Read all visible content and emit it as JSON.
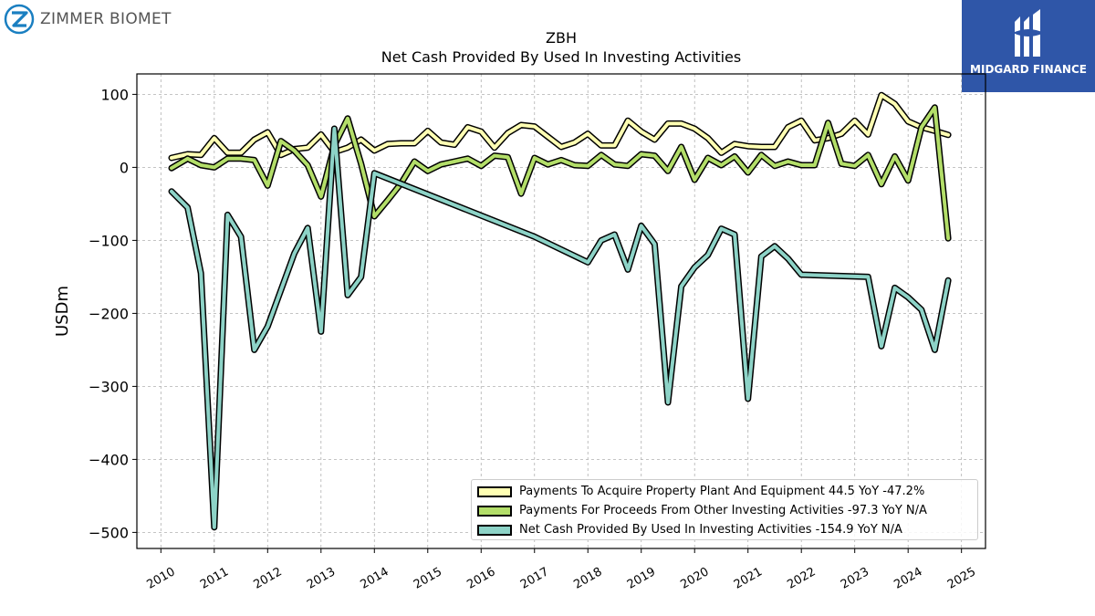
{
  "header": {
    "company_logo_text": "ZIMMER BIOMET",
    "brand_text": "MIDGARD FINANCE"
  },
  "colors": {
    "capex": "#ffffb3",
    "other": "#b3de69",
    "net": "#8dd3c7",
    "outline": "#000000",
    "grid": "#b0b0b0",
    "brand_bg": "#2f56a8"
  },
  "chart_data": {
    "type": "line",
    "title": "ZBH",
    "subtitle": "Net Cash Provided By Used In Investing Activities",
    "xlabel": "",
    "ylabel": "USDm",
    "xlim": [
      2009.55,
      2025.45
    ],
    "ylim": [
      -522,
      128
    ],
    "x_ticks": [
      "2010",
      "2011",
      "2012",
      "2013",
      "2014",
      "2015",
      "2016",
      "2017",
      "2018",
      "2019",
      "2020",
      "2021",
      "2022",
      "2023",
      "2024",
      "2025"
    ],
    "y_ticks": [
      100,
      0,
      -100,
      -200,
      -300,
      -400,
      -500
    ],
    "y_tick_labels": [
      "100",
      "0",
      "−100",
      "−200",
      "−300",
      "−400",
      "−500"
    ],
    "grid": true,
    "legend_position": "bottom-right",
    "series": [
      {
        "name": "Payments To Acquire Property Plant And Equipment",
        "legend_label": "Payments To Acquire Property Plant And Equipment  44.5 YoY -47.2%",
        "color_key": "capex",
        "points": [
          [
            2010.2,
            13
          ],
          [
            2010.5,
            18
          ],
          [
            2010.75,
            17
          ],
          [
            2011.0,
            40
          ],
          [
            2011.25,
            20
          ],
          [
            2011.5,
            20
          ],
          [
            2011.75,
            38
          ],
          [
            2012.0,
            48
          ],
          [
            2012.25,
            17
          ],
          [
            2012.5,
            25
          ],
          [
            2012.75,
            27
          ],
          [
            2013.0,
            45
          ],
          [
            2013.25,
            21
          ],
          [
            2013.5,
            27
          ],
          [
            2013.75,
            38
          ],
          [
            2014.0,
            23
          ],
          [
            2014.25,
            32
          ],
          [
            2014.5,
            33
          ],
          [
            2014.75,
            33
          ],
          [
            2015.0,
            50
          ],
          [
            2015.25,
            34
          ],
          [
            2015.5,
            31
          ],
          [
            2015.75,
            55
          ],
          [
            2016.0,
            49
          ],
          [
            2016.25,
            27
          ],
          [
            2016.5,
            47
          ],
          [
            2016.75,
            58
          ],
          [
            2017.0,
            56
          ],
          [
            2017.25,
            42
          ],
          [
            2017.5,
            28
          ],
          [
            2017.75,
            34
          ],
          [
            2018.0,
            46
          ],
          [
            2018.25,
            30
          ],
          [
            2018.5,
            30
          ],
          [
            2018.75,
            64
          ],
          [
            2019.0,
            49
          ],
          [
            2019.25,
            38
          ],
          [
            2019.5,
            60
          ],
          [
            2019.75,
            60
          ],
          [
            2020.0,
            53
          ],
          [
            2020.25,
            40
          ],
          [
            2020.5,
            20
          ],
          [
            2020.75,
            32
          ],
          [
            2021.0,
            29
          ],
          [
            2021.25,
            28
          ],
          [
            2021.5,
            28
          ],
          [
            2021.75,
            55
          ],
          [
            2022.0,
            64
          ],
          [
            2022.25,
            37
          ],
          [
            2022.5,
            40
          ],
          [
            2022.75,
            46
          ],
          [
            2023.0,
            64
          ],
          [
            2023.25,
            45
          ],
          [
            2023.5,
            99
          ],
          [
            2023.75,
            87
          ],
          [
            2024.0,
            63
          ],
          [
            2024.25,
            55
          ],
          [
            2024.5,
            50
          ],
          [
            2024.75,
            44.5
          ]
        ]
      },
      {
        "name": "Payments For Proceeds From Other Investing Activities",
        "legend_label": "Payments For Proceeds From Other Investing Activities  -97.3 YoY N/A",
        "color_key": "other",
        "points": [
          [
            2010.2,
            -1
          ],
          [
            2010.5,
            12
          ],
          [
            2010.75,
            3
          ],
          [
            2011.0,
            0
          ],
          [
            2011.25,
            12
          ],
          [
            2011.5,
            12
          ],
          [
            2011.75,
            10
          ],
          [
            2012.0,
            -25
          ],
          [
            2012.25,
            36
          ],
          [
            2012.5,
            23
          ],
          [
            2012.75,
            3
          ],
          [
            2013.0,
            -40
          ],
          [
            2013.25,
            30
          ],
          [
            2013.5,
            67
          ],
          [
            2013.75,
            5
          ],
          [
            2014.0,
            -67
          ],
          [
            2014.25,
            -45
          ],
          [
            2014.5,
            -22
          ],
          [
            2014.75,
            8
          ],
          [
            2015.0,
            -5
          ],
          [
            2015.25,
            4
          ],
          [
            2015.5,
            8
          ],
          [
            2015.75,
            12
          ],
          [
            2016.0,
            2
          ],
          [
            2016.25,
            16
          ],
          [
            2016.5,
            14
          ],
          [
            2016.75,
            -36
          ],
          [
            2017.0,
            13
          ],
          [
            2017.25,
            4
          ],
          [
            2017.5,
            10
          ],
          [
            2017.75,
            3
          ],
          [
            2018.0,
            2
          ],
          [
            2018.25,
            17
          ],
          [
            2018.5,
            4
          ],
          [
            2018.75,
            2
          ],
          [
            2019.0,
            18
          ],
          [
            2019.25,
            16
          ],
          [
            2019.5,
            -5
          ],
          [
            2019.75,
            28
          ],
          [
            2020.0,
            -17
          ],
          [
            2020.25,
            13
          ],
          [
            2020.5,
            3
          ],
          [
            2020.75,
            15
          ],
          [
            2021.0,
            -7
          ],
          [
            2021.25,
            17
          ],
          [
            2021.5,
            2
          ],
          [
            2021.75,
            8
          ],
          [
            2022.0,
            3
          ],
          [
            2022.25,
            3
          ],
          [
            2022.5,
            61
          ],
          [
            2022.75,
            5
          ],
          [
            2023.0,
            2
          ],
          [
            2023.25,
            17
          ],
          [
            2023.5,
            -23
          ],
          [
            2023.75,
            15
          ],
          [
            2024.0,
            -18
          ],
          [
            2024.25,
            55
          ],
          [
            2024.5,
            82
          ],
          [
            2024.75,
            -97.3
          ]
        ]
      },
      {
        "name": "Net Cash Provided By Used In Investing Activities",
        "legend_label": "Net Cash Provided By Used In Investing Activities  -154.9 YoY N/A",
        "color_key": "net",
        "points": [
          [
            2010.2,
            -33
          ],
          [
            2010.5,
            -55
          ],
          [
            2010.75,
            -145
          ],
          [
            2011.0,
            -493
          ],
          [
            2011.25,
            -65
          ],
          [
            2011.5,
            -95
          ],
          [
            2011.75,
            -250
          ],
          [
            2012.0,
            -218
          ],
          [
            2012.25,
            -168
          ],
          [
            2012.5,
            -118
          ],
          [
            2012.75,
            -83
          ],
          [
            2013.0,
            -225
          ],
          [
            2013.25,
            53
          ],
          [
            2013.5,
            -175
          ],
          [
            2013.75,
            -150
          ],
          [
            2014.0,
            -8
          ],
          [
            2017.0,
            -95
          ],
          [
            2018.0,
            -130
          ],
          [
            2018.25,
            -100
          ],
          [
            2018.5,
            -92
          ],
          [
            2018.75,
            -140
          ],
          [
            2019.0,
            -80
          ],
          [
            2019.25,
            -105
          ],
          [
            2019.5,
            -322
          ],
          [
            2019.75,
            -163
          ],
          [
            2020.0,
            -137
          ],
          [
            2020.25,
            -120
          ],
          [
            2020.5,
            -84
          ],
          [
            2020.75,
            -92
          ],
          [
            2021.0,
            -317
          ],
          [
            2021.25,
            -122
          ],
          [
            2021.5,
            -108
          ],
          [
            2021.75,
            -125
          ],
          [
            2022.0,
            -147
          ],
          [
            2023.25,
            -150
          ],
          [
            2023.5,
            -245
          ],
          [
            2023.75,
            -165
          ],
          [
            2024.0,
            -178
          ],
          [
            2024.25,
            -195
          ],
          [
            2024.5,
            -250
          ],
          [
            2024.75,
            -154.9
          ]
        ]
      }
    ]
  }
}
